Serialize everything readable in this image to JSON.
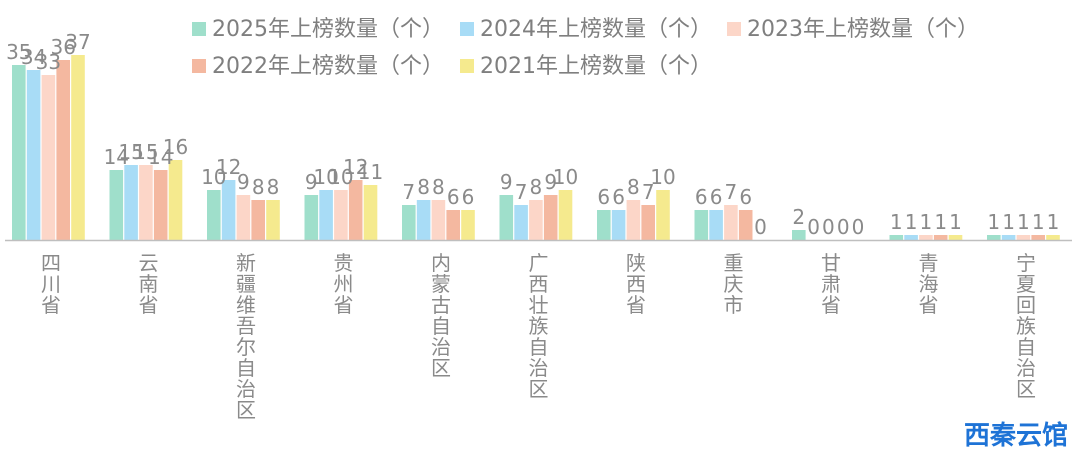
{
  "chart_data": {
    "type": "bar",
    "title": "",
    "xlabel": "",
    "ylabel": "",
    "ylim": [
      0,
      40
    ],
    "grid": false,
    "legend_position": "top",
    "categories": [
      "四川省",
      "云南省",
      "新疆维吾尔自治区",
      "贵州省",
      "内蒙古自治区",
      "广西壮族自治区",
      "陕西省",
      "重庆市",
      "甘肃省",
      "青海省",
      "宁夏回族自治区"
    ],
    "series": [
      {
        "name": "2025年上榜数量（个）",
        "color": "#9fdfcb",
        "values": [
          35,
          14,
          10,
          9,
          7,
          9,
          6,
          6,
          2,
          1,
          1
        ]
      },
      {
        "name": "2024年上榜数量（个）",
        "color": "#a8dcf6",
        "values": [
          34,
          15,
          12,
          10,
          8,
          7,
          6,
          6,
          0,
          1,
          1
        ]
      },
      {
        "name": "2023年上榜数量（个）",
        "color": "#fcd6c8",
        "values": [
          33,
          15,
          9,
          10,
          8,
          8,
          8,
          7,
          0,
          1,
          1
        ]
      },
      {
        "name": "2022年上榜数量（个）",
        "color": "#f4b8a0",
        "values": [
          36,
          14,
          8,
          12,
          6,
          9,
          7,
          6,
          0,
          1,
          1
        ]
      },
      {
        "name": "2021年上榜数量（个）",
        "color": "#f5ea8e",
        "values": [
          37,
          16,
          8,
          11,
          6,
          10,
          10,
          0,
          0,
          1,
          1
        ]
      }
    ]
  },
  "watermark": {
    "brand_text": "西秦云馆",
    "brand_color": "#1e73d6"
  }
}
